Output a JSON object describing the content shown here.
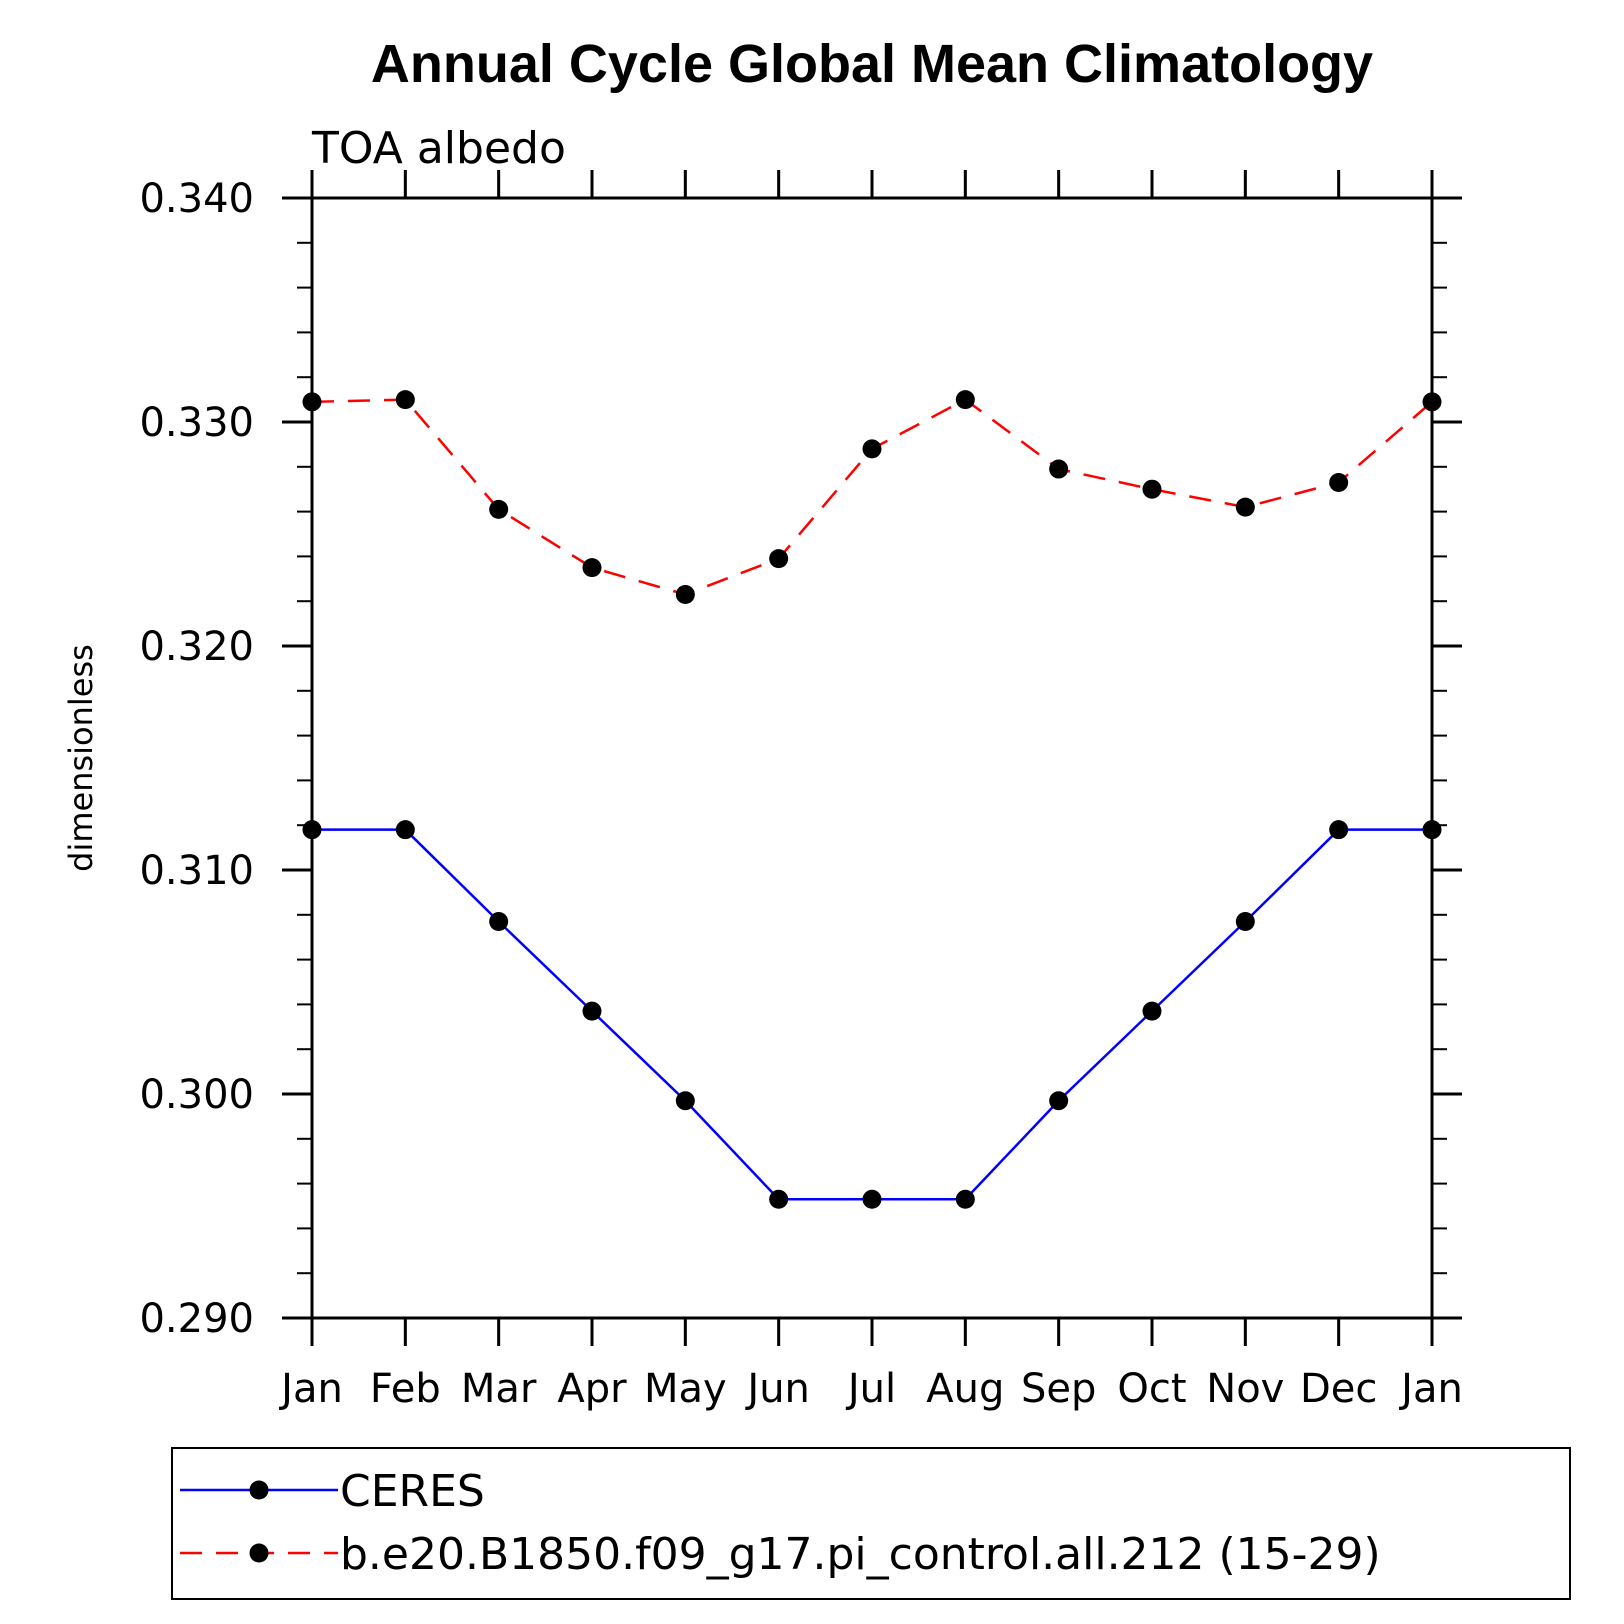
{
  "chart_data": {
    "type": "line",
    "title": "Annual Cycle Global Mean Climatology",
    "subtitle": "TOA albedo",
    "ylabel": "dimensionless",
    "xlabel": "",
    "categories": [
      "Jan",
      "Feb",
      "Mar",
      "Apr",
      "May",
      "Jun",
      "Jul",
      "Aug",
      "Sep",
      "Oct",
      "Nov",
      "Dec",
      "Jan"
    ],
    "ylim": [
      0.29,
      0.34
    ],
    "yticks": [
      0.29,
      0.3,
      0.31,
      0.32,
      0.33,
      0.34
    ],
    "ytick_labels": [
      "0.290",
      "0.300",
      "0.310",
      "0.320",
      "0.330",
      "0.340"
    ],
    "grid": false,
    "legend_position": "bottom",
    "series": [
      {
        "name": "CERES",
        "color": "#0000ff",
        "line_style": "solid",
        "values": [
          0.3118,
          0.3118,
          0.3077,
          0.3037,
          0.2997,
          0.2953,
          0.2953,
          0.2953,
          0.2997,
          0.3037,
          0.3077,
          0.3118,
          0.3118
        ]
      },
      {
        "name": "b.e20.B1850.f09_g17.pi_control.all.212 (15-29)",
        "color": "#ff0000",
        "line_style": "dashed",
        "values": [
          0.3309,
          0.331,
          0.3261,
          0.3235,
          0.3223,
          0.3239,
          0.3288,
          0.331,
          0.3279,
          0.327,
          0.3262,
          0.3273,
          0.3309
        ]
      }
    ]
  }
}
